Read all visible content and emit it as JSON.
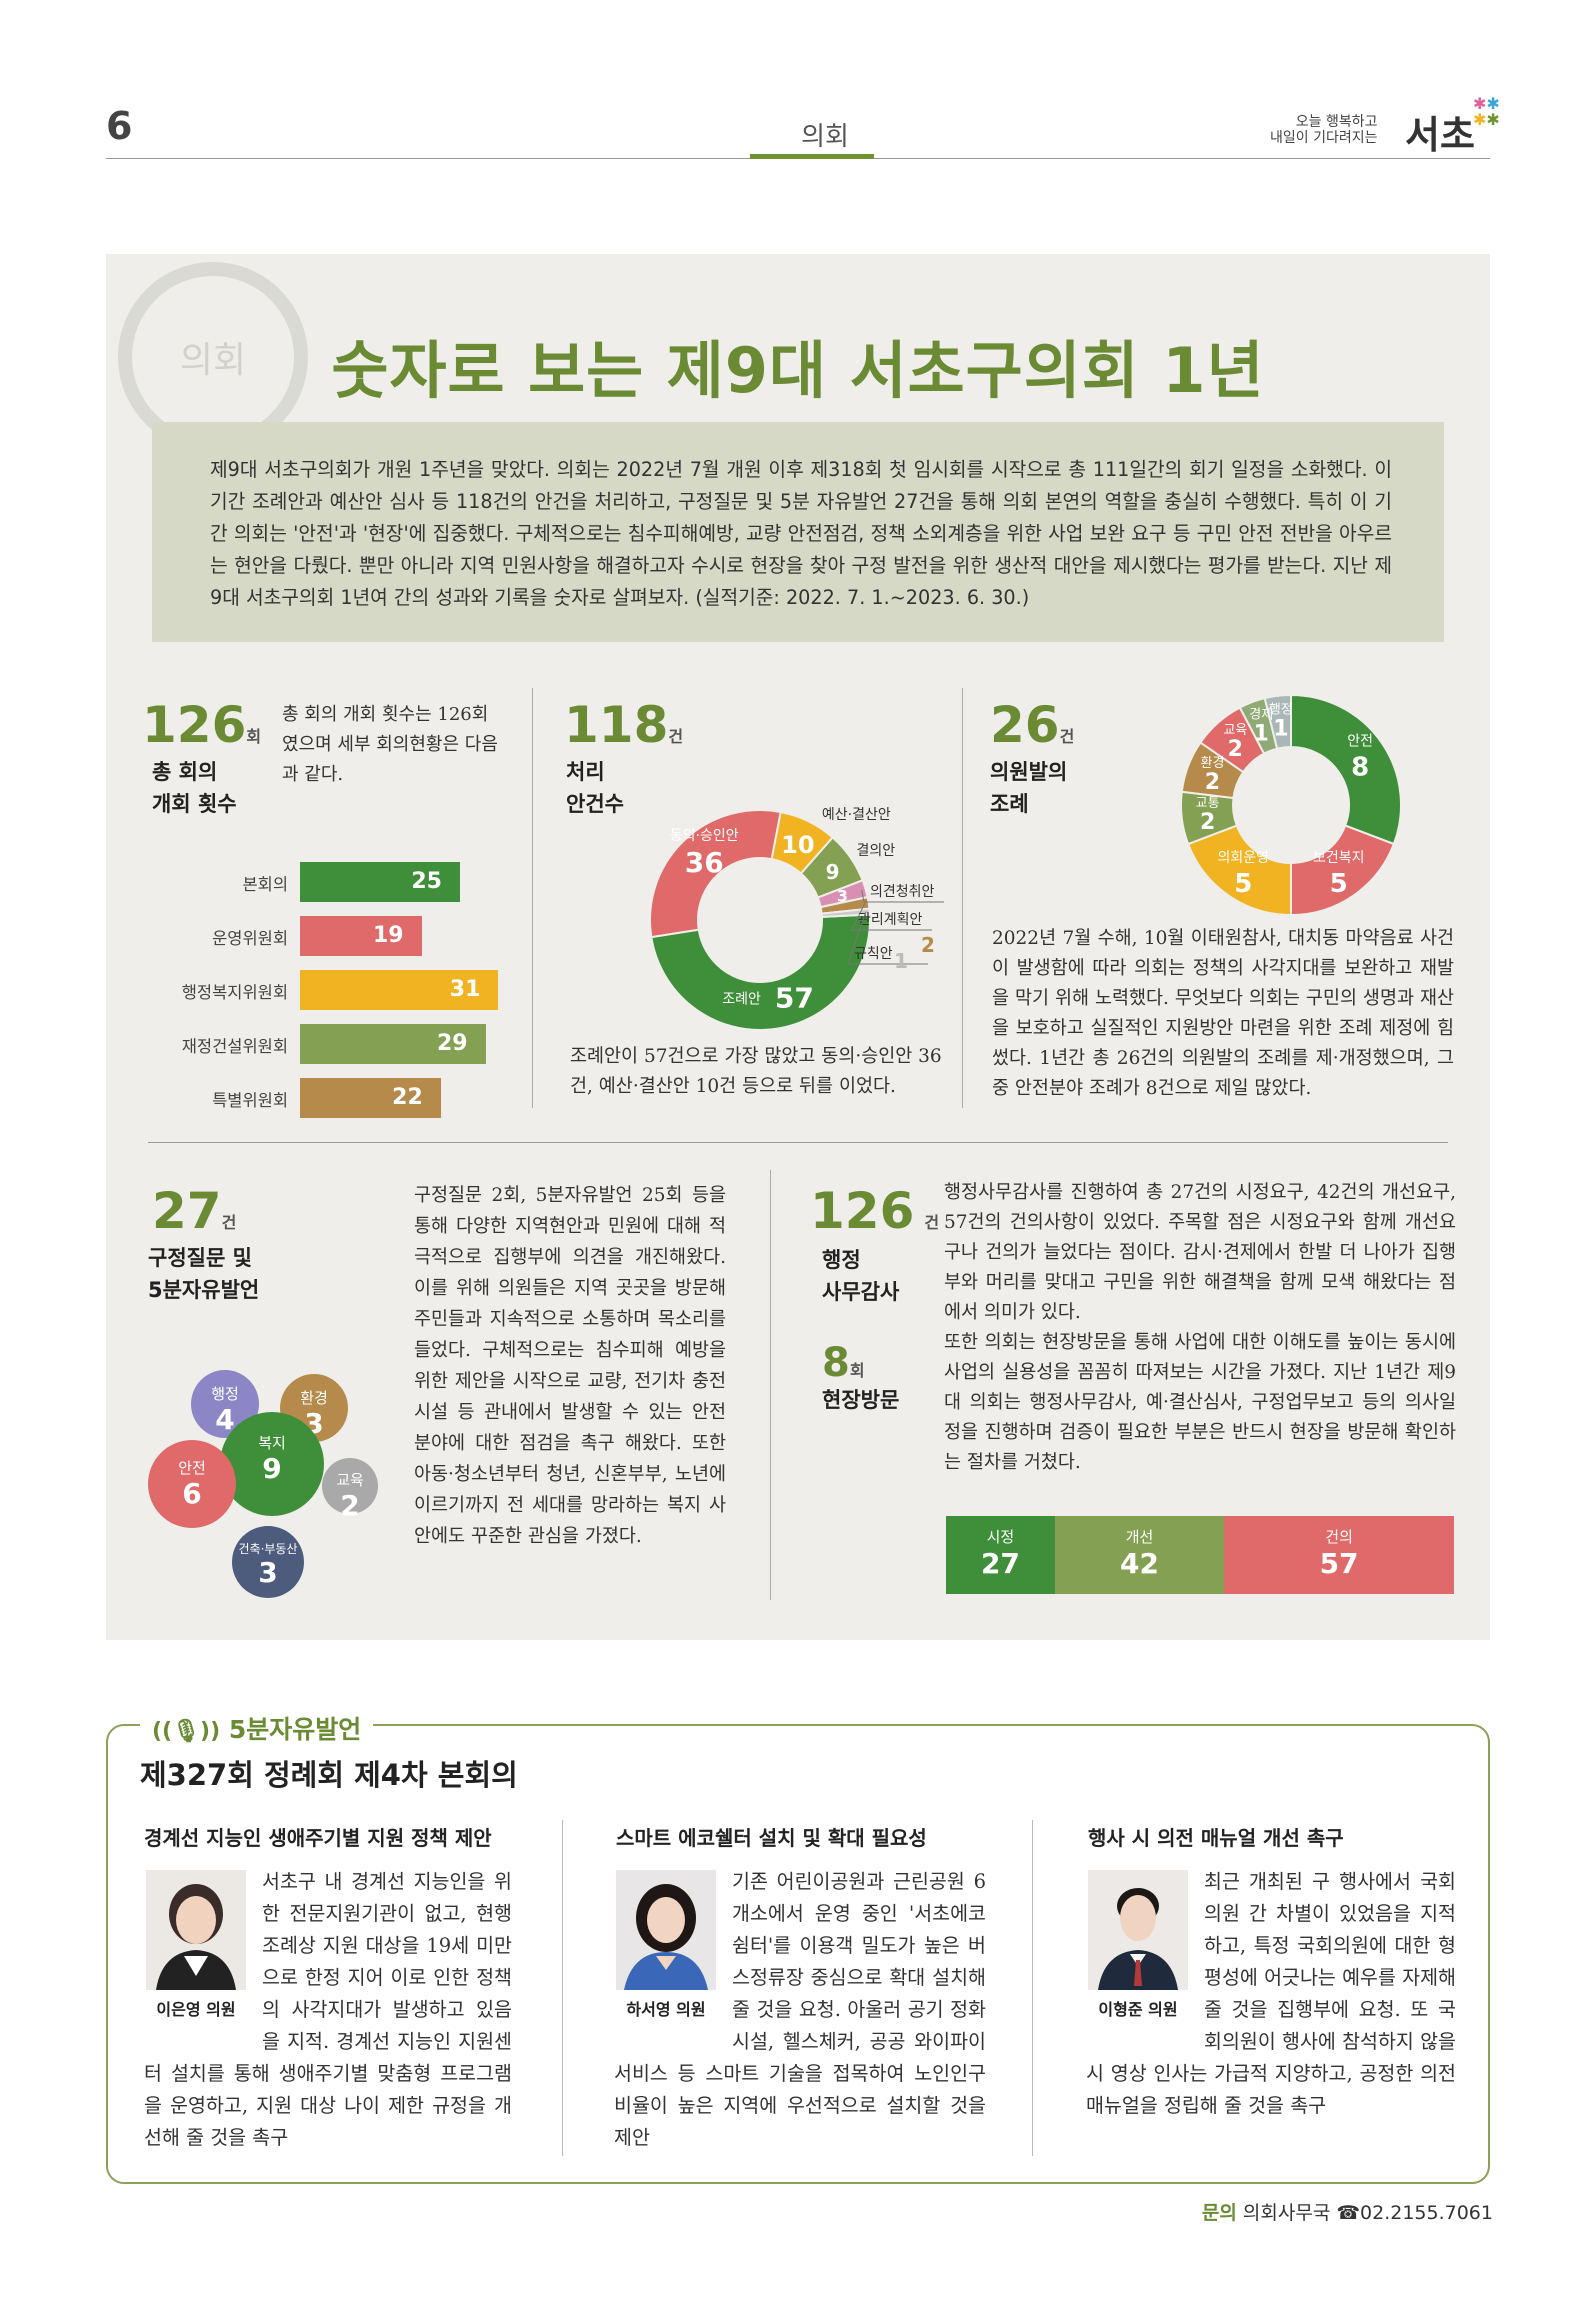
{
  "header": {
    "page_number": "6",
    "section": "의회",
    "brand_line1": "오늘 행복하고",
    "brand_line2": "내일이 기다려지는",
    "brand": "서초"
  },
  "emblem_text": "의회",
  "title": "숫자로 보는 제9대 서초구의회 1년",
  "intro": "제9대 서초구의회가 개원 1주년을 맞았다. 의회는 2022년 7월 개원 이후 제318회 첫 임시회를 시작으로 총 111일간의 회기 일정을 소화했다. 이 기간 조례안과 예산안 심사 등 118건의 안건을 처리하고, 구정질문 및 5분 자유발언 27건을 통해 의회 본연의 역할을 충실히 수행했다. 특히 이 기간 의회는 '안전'과 '현장'에 집중했다. 구체적으로는 침수피해예방, 교량 안전점검, 정책 소외계층을 위한 사업 보완 요구 등 구민 안전 전반을 아우르는 현안을 다뤘다. 뿐만 아니라 지역 민원사항을 해결하고자 수시로 현장을 찾아 구정 발전을 위한 생산적 대안을 제시했다는 평가를 받는다. 지난 제9대 서초구의회 1년여 간의 성과와 기록을 숫자로 살펴보자. (실적기준: 2022. 7. 1.~2023. 6. 30.)",
  "meetings": {
    "number": "126",
    "unit": "회",
    "label_line1": "총 회의",
    "label_line2": "개회 횟수",
    "desc": "총 회의 개회 횟수는 126회였으며 세부 회의현황은 다음과 같다.",
    "colors": [
      "#3f8f3a",
      "#e0696a",
      "#f2b323",
      "#84a052",
      "#b58a4a"
    ]
  },
  "bills": {
    "number": "118",
    "unit": "건",
    "label_line1": "처리",
    "label_line2": "안건수",
    "desc": "조례안이 57건으로 가장 많았고 동의·승인안 36건, 예산·결산안 10건 등으로 뒤를 이었다.",
    "colors": [
      "#3f8f3a",
      "#e0696a",
      "#f2b323",
      "#84a052",
      "#d98fb3",
      "#b58a4a",
      "#c9c9c9"
    ]
  },
  "ordinances": {
    "number": "26",
    "unit": "건",
    "label_line1": "의원발의",
    "label_line2": "조례",
    "desc": "2022년 7월 수해, 10월 이태원참사, 대치동 마약음료 사건 이 발생함에 따라 의회는 정책의 사각지대를 보완하고 재발을 막기 위해 노력했다. 무엇보다 의회는 구민의 생명과 재산을 보호하고 실질적인 지원방안 마련을 위한 조례 제정에 힘썼다. 1년간 총 26건의 의원발의 조례를 제·개정했으며, 그중 안전분야 조례가 8건으로 제일 많았다.",
    "colors": [
      "#3f8f3a",
      "#e0696a",
      "#f2b323",
      "#84a052",
      "#b58a4a",
      "#e0696a",
      "#8faa74",
      "#a9b7b7"
    ]
  },
  "questions": {
    "number": "27",
    "unit": "건",
    "label_line1": "구정질문 및",
    "label_line2": "5분자유발언",
    "desc": "구정질문 2회, 5분자유발언 25회 등을 통해 다양한 지역현안과 민원에 대해 적극적으로 집행부에 의견을 개진해왔다. 이를 위해 의원들은 지역 곳곳을 방문해 주민들과 지속적으로 소통하며 목소리를 들었다. 구체적으로는 침수피해 예방을 위한 제안을 시작으로 교량, 전기차 충전시설 등 관내에서 발생할 수 있는 안전 분야에 대한 점검을 촉구 해왔다. 또한 아동·청소년부터 청년, 신혼부부, 노년에 이르기까지 전 세대를 망라하는 복지 사안에도 꾸준한 관심을 가졌다.",
    "bubbles": [
      {
        "label": "행정",
        "value": "4",
        "color": "#8c86c7"
      },
      {
        "label": "환경",
        "value": "3",
        "color": "#b58a4a"
      },
      {
        "label": "복지",
        "value": "9",
        "color": "#3f8f3a"
      },
      {
        "label": "안전",
        "value": "6",
        "color": "#e0696a"
      },
      {
        "label": "교육",
        "value": "2",
        "color": "#a9a9a9"
      },
      {
        "label": "건축·부동산",
        "value": "3",
        "color": "#4d5c7d"
      }
    ]
  },
  "audit": {
    "number": "126",
    "unit": "건",
    "label_line1": "행정",
    "label_line2": "사무감사",
    "visit_number": "8",
    "visit_unit": "회",
    "visit_label": "현장방문",
    "desc1": "행정사무감사를 진행하여 총 27건의 시정요구, 42건의 개선요구, 57건의 건의사항이 있었다. 주목할 점은 시정요구와 함께 개선요구나 건의가 늘었다는 점이다. 감시·견제에서 한발 더 나아가 집행부와 머리를 맞대고 구민을 위한 해결책을 함께 모색 해왔다는 점에서 의미가 있다.",
    "desc2": "또한 의회는 현장방문을 통해 사업에 대한 이해도를 높이는 동시에 사업의 실용성을 꼼꼼히 따져보는 시간을 가졌다. 지난 1년간 제9대 의회는 행정사무감사, 예·결산심사, 구정업무보고 등의 의사일정을 진행하며 검증이 필요한 부분은 반드시 현장을 방문해 확인하는 절차를 거쳤다.",
    "stack": [
      {
        "label": "시정",
        "value": 27,
        "color": "#3f8f3a"
      },
      {
        "label": "개선",
        "value": 42,
        "color": "#84a052"
      },
      {
        "label": "건의",
        "value": 57,
        "color": "#e0696a"
      }
    ]
  },
  "free_speech": {
    "tag": "5분자유발언",
    "title": "제327회 정례회 제4차 본회의",
    "columns": [
      {
        "title": "경계선 지능인 생애주기별 지원 정책 제안",
        "name": "이은영 의원",
        "text": "서초구 내 경계선 지능인을 위한 전문지원기관이 없고, 현행 조례상 지원 대상을 19세 미만으로 한정 지어 이로 인한 정책의 사각지대가 발생하고 있음을 지적. 경계선 지능인 지원센터 설치를 통해 생애주기별 맞춤형 프로그램을 운영하고, 지원 대상 나이 제한 규정을 개선해 줄 것을 촉구"
      },
      {
        "title": "스마트 에코쉘터 설치 및 확대 필요성",
        "name": "하서영 의원",
        "text": "기존 어린이공원과 근린공원 6개소에서 운영 중인 '서초에코쉼터'를 이용객 밀도가 높은 버스정류장 중심으로 확대 설치해줄 것을 요청. 아울러 공기 정화시설, 헬스체커, 공공 와이파이 서비스 등 스마트 기술을 접목하여 노인인구 비율이 높은 지역에 우선적으로 설치할 것을 제안"
      },
      {
        "title": "행사 시 의전 매뉴얼 개선 촉구",
        "name": "이형준 의원",
        "text": "최근 개최된 구 행사에서 국회의원 간 차별이 있었음을 지적하고, 특정 국회의원에 대한 형평성에 어긋나는 예우를 자제해 줄 것을 집행부에 요청. 또 국회의원이 행사에 참석하지 않을 시 영상 인사는 가급적 지양하고, 공정한 의전 매뉴얼을 정립해 줄 것을 촉구"
      }
    ]
  },
  "contact": {
    "label": "문의",
    "office": "의회사무국",
    "phone": "☎02.2155.7061"
  },
  "chart_data": [
    {
      "type": "bar",
      "categories": [
        "본회의",
        "운영위원회",
        "행정복지위원회",
        "재정건설위원회",
        "특별위원회"
      ],
      "values": [
        25,
        19,
        31,
        29,
        22
      ]
    },
    {
      "type": "pie",
      "categories": [
        "조례안",
        "동의·승인안",
        "예산·결산안",
        "결의안",
        "의견청취안",
        "관리계획안",
        "규칙안"
      ],
      "values": [
        57,
        36,
        10,
        9,
        3,
        2,
        1
      ]
    },
    {
      "type": "pie",
      "categories": [
        "안전",
        "보건복지",
        "의회운영",
        "교통",
        "환경",
        "교육",
        "경제",
        "행정"
      ],
      "values": [
        8,
        5,
        5,
        2,
        2,
        2,
        1,
        1
      ]
    },
    {
      "type": "bar",
      "categories": [
        "시정",
        "개선",
        "건의"
      ],
      "values": [
        27,
        42,
        57
      ]
    }
  ]
}
